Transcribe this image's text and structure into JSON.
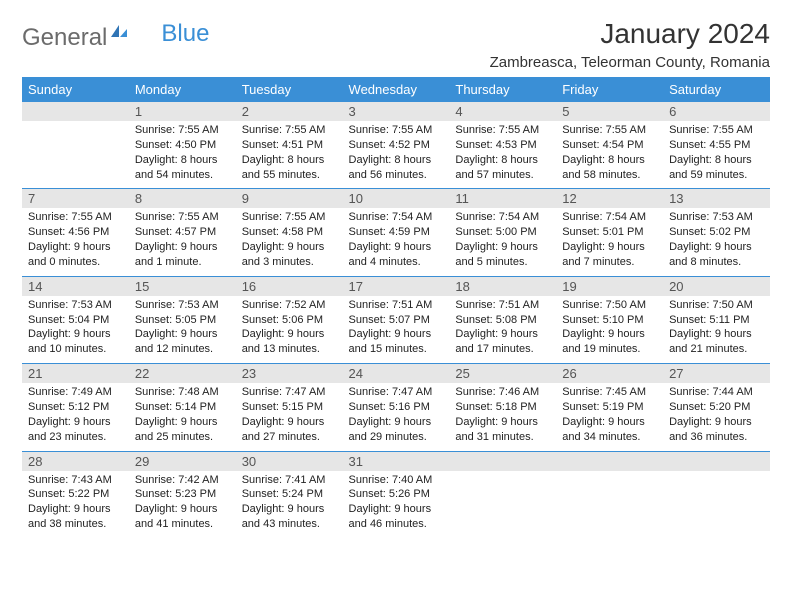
{
  "brand": {
    "general": "General",
    "blue": "Blue"
  },
  "title": "January 2024",
  "location": "Zambreasca, Teleorman County, Romania",
  "colors": {
    "accent": "#3a8fd6",
    "header_text": "#ffffff",
    "daynum_bg": "#e6e6e6",
    "text": "#222222",
    "title": "#333333"
  },
  "day_headers": [
    "Sunday",
    "Monday",
    "Tuesday",
    "Wednesday",
    "Thursday",
    "Friday",
    "Saturday"
  ],
  "weeks": [
    {
      "nums": [
        "",
        "1",
        "2",
        "3",
        "4",
        "5",
        "6"
      ],
      "cells": [
        null,
        {
          "sunrise": "Sunrise: 7:55 AM",
          "sunset": "Sunset: 4:50 PM",
          "day1": "Daylight: 8 hours",
          "day2": "and 54 minutes."
        },
        {
          "sunrise": "Sunrise: 7:55 AM",
          "sunset": "Sunset: 4:51 PM",
          "day1": "Daylight: 8 hours",
          "day2": "and 55 minutes."
        },
        {
          "sunrise": "Sunrise: 7:55 AM",
          "sunset": "Sunset: 4:52 PM",
          "day1": "Daylight: 8 hours",
          "day2": "and 56 minutes."
        },
        {
          "sunrise": "Sunrise: 7:55 AM",
          "sunset": "Sunset: 4:53 PM",
          "day1": "Daylight: 8 hours",
          "day2": "and 57 minutes."
        },
        {
          "sunrise": "Sunrise: 7:55 AM",
          "sunset": "Sunset: 4:54 PM",
          "day1": "Daylight: 8 hours",
          "day2": "and 58 minutes."
        },
        {
          "sunrise": "Sunrise: 7:55 AM",
          "sunset": "Sunset: 4:55 PM",
          "day1": "Daylight: 8 hours",
          "day2": "and 59 minutes."
        }
      ]
    },
    {
      "nums": [
        "7",
        "8",
        "9",
        "10",
        "11",
        "12",
        "13"
      ],
      "cells": [
        {
          "sunrise": "Sunrise: 7:55 AM",
          "sunset": "Sunset: 4:56 PM",
          "day1": "Daylight: 9 hours",
          "day2": "and 0 minutes."
        },
        {
          "sunrise": "Sunrise: 7:55 AM",
          "sunset": "Sunset: 4:57 PM",
          "day1": "Daylight: 9 hours",
          "day2": "and 1 minute."
        },
        {
          "sunrise": "Sunrise: 7:55 AM",
          "sunset": "Sunset: 4:58 PM",
          "day1": "Daylight: 9 hours",
          "day2": "and 3 minutes."
        },
        {
          "sunrise": "Sunrise: 7:54 AM",
          "sunset": "Sunset: 4:59 PM",
          "day1": "Daylight: 9 hours",
          "day2": "and 4 minutes."
        },
        {
          "sunrise": "Sunrise: 7:54 AM",
          "sunset": "Sunset: 5:00 PM",
          "day1": "Daylight: 9 hours",
          "day2": "and 5 minutes."
        },
        {
          "sunrise": "Sunrise: 7:54 AM",
          "sunset": "Sunset: 5:01 PM",
          "day1": "Daylight: 9 hours",
          "day2": "and 7 minutes."
        },
        {
          "sunrise": "Sunrise: 7:53 AM",
          "sunset": "Sunset: 5:02 PM",
          "day1": "Daylight: 9 hours",
          "day2": "and 8 minutes."
        }
      ]
    },
    {
      "nums": [
        "14",
        "15",
        "16",
        "17",
        "18",
        "19",
        "20"
      ],
      "cells": [
        {
          "sunrise": "Sunrise: 7:53 AM",
          "sunset": "Sunset: 5:04 PM",
          "day1": "Daylight: 9 hours",
          "day2": "and 10 minutes."
        },
        {
          "sunrise": "Sunrise: 7:53 AM",
          "sunset": "Sunset: 5:05 PM",
          "day1": "Daylight: 9 hours",
          "day2": "and 12 minutes."
        },
        {
          "sunrise": "Sunrise: 7:52 AM",
          "sunset": "Sunset: 5:06 PM",
          "day1": "Daylight: 9 hours",
          "day2": "and 13 minutes."
        },
        {
          "sunrise": "Sunrise: 7:51 AM",
          "sunset": "Sunset: 5:07 PM",
          "day1": "Daylight: 9 hours",
          "day2": "and 15 minutes."
        },
        {
          "sunrise": "Sunrise: 7:51 AM",
          "sunset": "Sunset: 5:08 PM",
          "day1": "Daylight: 9 hours",
          "day2": "and 17 minutes."
        },
        {
          "sunrise": "Sunrise: 7:50 AM",
          "sunset": "Sunset: 5:10 PM",
          "day1": "Daylight: 9 hours",
          "day2": "and 19 minutes."
        },
        {
          "sunrise": "Sunrise: 7:50 AM",
          "sunset": "Sunset: 5:11 PM",
          "day1": "Daylight: 9 hours",
          "day2": "and 21 minutes."
        }
      ]
    },
    {
      "nums": [
        "21",
        "22",
        "23",
        "24",
        "25",
        "26",
        "27"
      ],
      "cells": [
        {
          "sunrise": "Sunrise: 7:49 AM",
          "sunset": "Sunset: 5:12 PM",
          "day1": "Daylight: 9 hours",
          "day2": "and 23 minutes."
        },
        {
          "sunrise": "Sunrise: 7:48 AM",
          "sunset": "Sunset: 5:14 PM",
          "day1": "Daylight: 9 hours",
          "day2": "and 25 minutes."
        },
        {
          "sunrise": "Sunrise: 7:47 AM",
          "sunset": "Sunset: 5:15 PM",
          "day1": "Daylight: 9 hours",
          "day2": "and 27 minutes."
        },
        {
          "sunrise": "Sunrise: 7:47 AM",
          "sunset": "Sunset: 5:16 PM",
          "day1": "Daylight: 9 hours",
          "day2": "and 29 minutes."
        },
        {
          "sunrise": "Sunrise: 7:46 AM",
          "sunset": "Sunset: 5:18 PM",
          "day1": "Daylight: 9 hours",
          "day2": "and 31 minutes."
        },
        {
          "sunrise": "Sunrise: 7:45 AM",
          "sunset": "Sunset: 5:19 PM",
          "day1": "Daylight: 9 hours",
          "day2": "and 34 minutes."
        },
        {
          "sunrise": "Sunrise: 7:44 AM",
          "sunset": "Sunset: 5:20 PM",
          "day1": "Daylight: 9 hours",
          "day2": "and 36 minutes."
        }
      ]
    },
    {
      "nums": [
        "28",
        "29",
        "30",
        "31",
        "",
        "",
        ""
      ],
      "cells": [
        {
          "sunrise": "Sunrise: 7:43 AM",
          "sunset": "Sunset: 5:22 PM",
          "day1": "Daylight: 9 hours",
          "day2": "and 38 minutes."
        },
        {
          "sunrise": "Sunrise: 7:42 AM",
          "sunset": "Sunset: 5:23 PM",
          "day1": "Daylight: 9 hours",
          "day2": "and 41 minutes."
        },
        {
          "sunrise": "Sunrise: 7:41 AM",
          "sunset": "Sunset: 5:24 PM",
          "day1": "Daylight: 9 hours",
          "day2": "and 43 minutes."
        },
        {
          "sunrise": "Sunrise: 7:40 AM",
          "sunset": "Sunset: 5:26 PM",
          "day1": "Daylight: 9 hours",
          "day2": "and 46 minutes."
        },
        null,
        null,
        null
      ]
    }
  ]
}
